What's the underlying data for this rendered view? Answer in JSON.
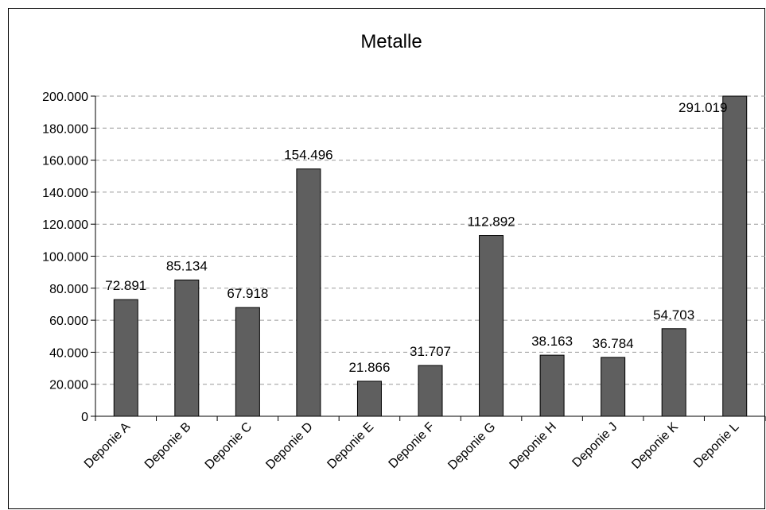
{
  "chart_data": {
    "type": "bar",
    "title": "Metalle",
    "xlabel": "",
    "ylabel": "",
    "categories": [
      "Deponie A",
      "Deponie B",
      "Deponie C",
      "Deponie D",
      "Deponie E",
      "Deponie F",
      "Deponie G",
      "Deponie H",
      "Deponie J",
      "Deponie K",
      "Deponie L"
    ],
    "values": [
      72891,
      85134,
      67918,
      154496,
      21866,
      31707,
      112892,
      38163,
      36784,
      54703,
      291019
    ],
    "value_labels": [
      "72.891",
      "85.134",
      "67.918",
      "154.496",
      "21.866",
      "31.707",
      "112.892",
      "38.163",
      "36.784",
      "54.703",
      "291.019"
    ],
    "ylim": [
      0,
      200000
    ],
    "yticks": [
      0,
      20000,
      40000,
      60000,
      80000,
      100000,
      120000,
      140000,
      160000,
      180000,
      200000
    ],
    "ytick_labels": [
      "0",
      "20.000",
      "40.000",
      "60.000",
      "80.000",
      "100.000",
      "120.000",
      "140.000",
      "160.000",
      "180.000",
      "200.000"
    ],
    "grid": true,
    "legend": "none",
    "bar_color": "#5f5f5f"
  }
}
